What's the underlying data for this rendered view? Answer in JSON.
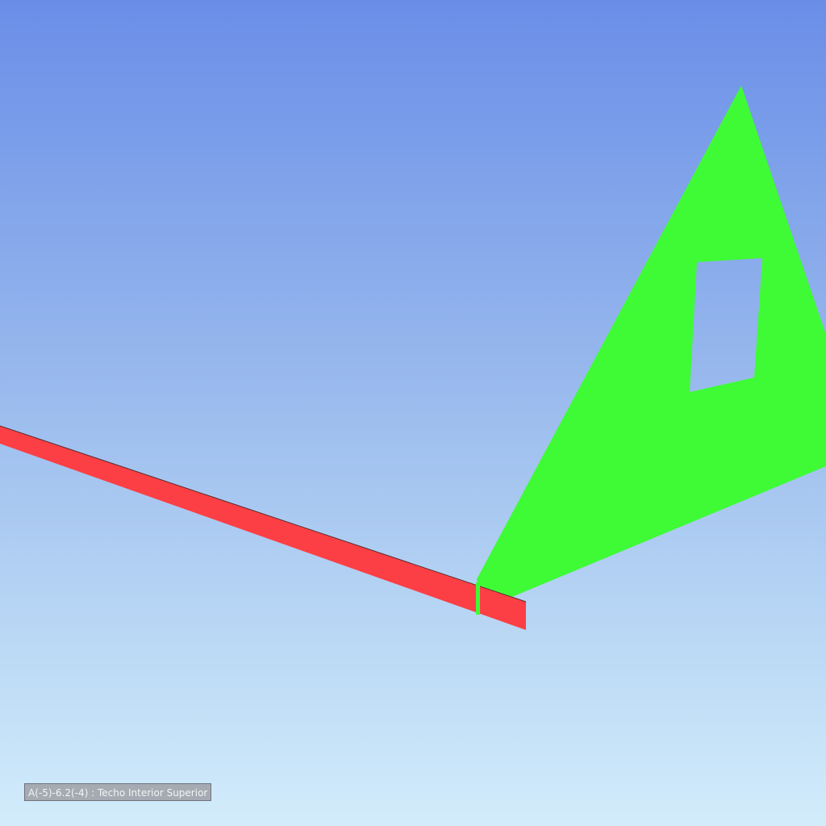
{
  "viewer": {
    "status_label": "A(-5)-6.2(-4) : Techo Interior Superior"
  },
  "colors": {
    "sky_top": "#6a8ee8",
    "sky_bottom": "#d2ecfb",
    "beam": "#fc3f44",
    "wall": "#3ffb36"
  }
}
